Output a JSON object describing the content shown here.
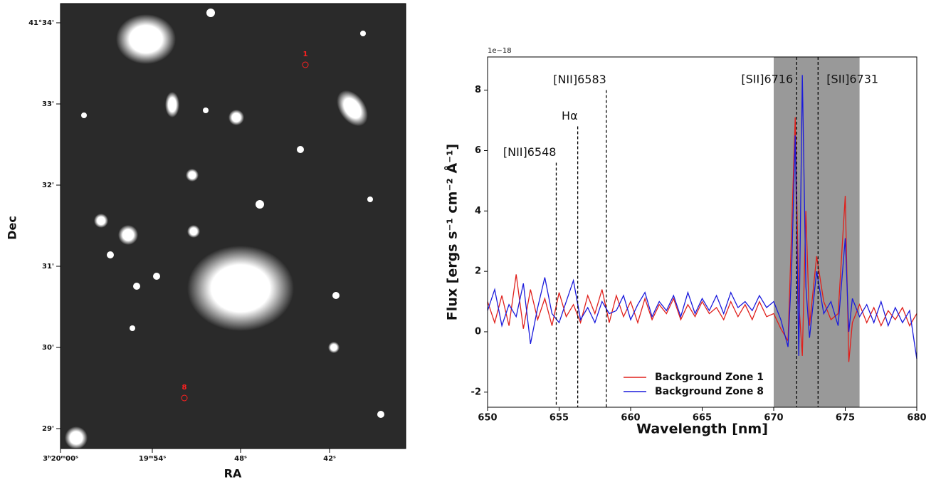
{
  "chart_data": [
    {
      "type": "image",
      "xlabel": "RA",
      "ylabel": "Dec",
      "xtick_labels": [
        "3ʰ20ᵐ00ˢ",
        "19ᵐ54ˢ",
        "48ˢ",
        "42ˢ"
      ],
      "ytick_labels": [
        "41°34'",
        "33'",
        "32'",
        "31'",
        "30'",
        "29'"
      ],
      "markers": [
        {
          "label": "1",
          "color": "#ff2020"
        },
        {
          "label": "8",
          "color": "#ff2020"
        }
      ]
    },
    {
      "type": "line",
      "offset_label": "1e−18",
      "xlabel": "Wavelength [nm]",
      "ylabel": "Flux [ergs s⁻¹ cm⁻² Å⁻¹]",
      "xlim": [
        650,
        680
      ],
      "xticks": [
        650,
        655,
        660,
        665,
        670,
        675,
        680
      ],
      "ylim": [
        -2.5,
        9.1
      ],
      "yticks": [
        -2,
        0,
        2,
        4,
        6,
        8
      ],
      "legend": "lower center",
      "span": {
        "x": [
          670,
          676
        ],
        "color": "#999999"
      },
      "vlines": [
        {
          "label": "[NII]6548",
          "x": 654.8,
          "top": 5.6
        },
        {
          "label": "Hα",
          "x": 656.3,
          "top": 6.8
        },
        {
          "label": "[NII]6583",
          "x": 658.3,
          "top": 8.0
        },
        {
          "label": "[SII]6716",
          "x": 671.6,
          "top": 9.1
        },
        {
          "label": "[SII]6731",
          "x": 673.1,
          "top": 9.1
        }
      ],
      "x": [
        650,
        650.5,
        651,
        651.5,
        652,
        652.5,
        653,
        653.5,
        654,
        654.5,
        655,
        655.5,
        656,
        656.5,
        657,
        657.5,
        658,
        658.5,
        659,
        659.5,
        660,
        660.5,
        661,
        661.5,
        662,
        662.5,
        663,
        663.5,
        664,
        664.5,
        665,
        665.5,
        666,
        666.5,
        667,
        667.5,
        668,
        668.5,
        669,
        669.5,
        670,
        670.5,
        671,
        671.25,
        671.5,
        671.75,
        672,
        672.25,
        672.5,
        673,
        673.5,
        674,
        674.5,
        675,
        675.25,
        675.5,
        676,
        676.5,
        677,
        677.5,
        678,
        678.5,
        679,
        679.5,
        680
      ],
      "series": [
        {
          "name": "Background Zone 1",
          "color": "#e0201c",
          "values": [
            1.0,
            0.3,
            1.2,
            0.2,
            1.9,
            0.1,
            1.4,
            0.4,
            1.1,
            0.2,
            1.3,
            0.5,
            0.9,
            0.3,
            1.2,
            0.6,
            1.4,
            0.3,
            1.2,
            0.5,
            1.0,
            0.3,
            1.1,
            0.4,
            0.9,
            0.6,
            1.1,
            0.4,
            0.9,
            0.5,
            1.0,
            0.6,
            0.8,
            0.4,
            1.0,
            0.5,
            0.9,
            0.4,
            1.0,
            0.5,
            0.6,
            0.1,
            -0.3,
            3.3,
            7.1,
            1.0,
            -0.8,
            4.0,
            0.2,
            2.5,
            1.0,
            0.4,
            0.6,
            4.5,
            -1.0,
            0.3,
            0.9,
            0.3,
            0.8,
            0.2,
            0.7,
            0.4,
            0.8,
            0.2,
            0.6
          ]
        },
        {
          "name": "Background Zone 8",
          "color": "#1a1adc",
          "values": [
            0.7,
            1.4,
            0.2,
            0.9,
            0.5,
            1.6,
            -0.4,
            0.8,
            1.8,
            0.6,
            0.3,
            1.0,
            1.7,
            0.4,
            0.8,
            0.3,
            1.0,
            0.6,
            0.7,
            1.2,
            0.4,
            0.9,
            1.3,
            0.5,
            1.0,
            0.7,
            1.2,
            0.5,
            1.3,
            0.6,
            1.1,
            0.7,
            1.2,
            0.6,
            1.3,
            0.8,
            1.0,
            0.7,
            1.2,
            0.8,
            1.0,
            0.4,
            -0.5,
            2.0,
            6.5,
            -0.8,
            8.5,
            1.5,
            -0.2,
            2.0,
            0.6,
            1.0,
            0.2,
            3.1,
            0.0,
            1.1,
            0.5,
            0.9,
            0.3,
            1.0,
            0.2,
            0.8,
            0.3,
            0.7,
            -0.9
          ]
        }
      ]
    }
  ]
}
